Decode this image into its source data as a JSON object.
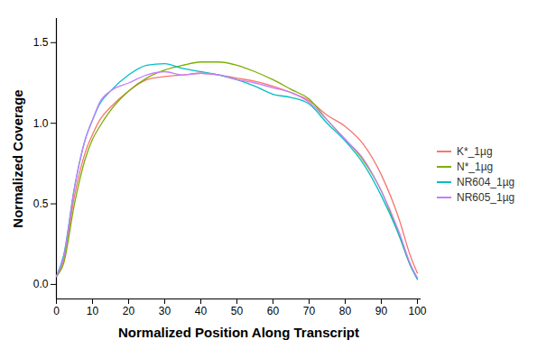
{
  "chart_data": {
    "type": "line",
    "x_label": "Normalized Position Along Transcript",
    "y_label": "Normalized Coverage",
    "x": [
      0,
      2,
      5,
      8,
      10,
      12,
      15,
      20,
      25,
      30,
      35,
      40,
      45,
      50,
      55,
      60,
      65,
      70,
      75,
      80,
      85,
      90,
      95,
      98,
      100
    ],
    "series": [
      {
        "name": "K*_1µg",
        "color": "#F8766D",
        "values": [
          0.05,
          0.15,
          0.55,
          0.82,
          0.93,
          1.02,
          1.1,
          1.2,
          1.27,
          1.29,
          1.3,
          1.31,
          1.3,
          1.28,
          1.26,
          1.23,
          1.19,
          1.14,
          1.05,
          0.98,
          0.87,
          0.68,
          0.4,
          0.18,
          0.07
        ]
      },
      {
        "name": "N*_1µg",
        "color": "#7CAE00",
        "values": [
          0.05,
          0.13,
          0.5,
          0.78,
          0.9,
          0.98,
          1.08,
          1.2,
          1.28,
          1.33,
          1.36,
          1.38,
          1.38,
          1.36,
          1.32,
          1.27,
          1.21,
          1.15,
          1.02,
          0.9,
          0.77,
          0.58,
          0.3,
          0.12,
          0.04
        ]
      },
      {
        "name": "NR604_1µg",
        "color": "#00BFC4",
        "values": [
          0.05,
          0.18,
          0.6,
          0.9,
          1.02,
          1.12,
          1.2,
          1.3,
          1.36,
          1.37,
          1.34,
          1.32,
          1.3,
          1.27,
          1.23,
          1.18,
          1.16,
          1.12,
          1.0,
          0.89,
          0.75,
          0.55,
          0.3,
          0.12,
          0.03
        ]
      },
      {
        "name": "NR605_1µg",
        "color": "#C77CFF",
        "values": [
          0.05,
          0.17,
          0.6,
          0.9,
          1.02,
          1.13,
          1.2,
          1.25,
          1.3,
          1.32,
          1.3,
          1.31,
          1.3,
          1.27,
          1.25,
          1.22,
          1.19,
          1.13,
          1.02,
          0.9,
          0.78,
          0.58,
          0.32,
          0.13,
          0.04
        ]
      }
    ],
    "xlim": [
      0,
      101
    ],
    "ylim": [
      -0.09,
      1.65
    ],
    "xticks": [
      0,
      10,
      20,
      30,
      40,
      50,
      60,
      70,
      80,
      90,
      100
    ],
    "yticks": [
      {
        "value": 0,
        "label": "0.0"
      },
      0.5,
      {
        "value": 1,
        "label": "1.0"
      },
      1.5
    ],
    "grid": false,
    "legend": "right"
  }
}
